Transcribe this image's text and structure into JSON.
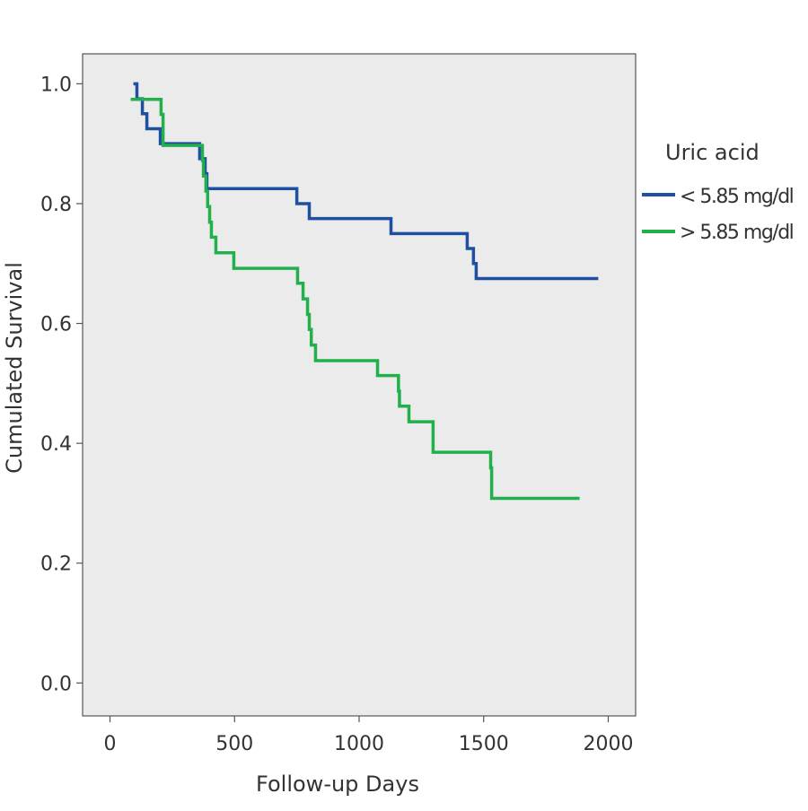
{
  "chart_data": {
    "type": "line",
    "step": true,
    "xlabel": "Follow-up Days",
    "ylabel": "Cumulated Survival",
    "xlim": [
      -110,
      2110
    ],
    "ylim": [
      -0.055,
      1.05
    ],
    "xticks": [
      "0",
      "500",
      "1000",
      "1500",
      "2000"
    ],
    "xtick_values": [
      0,
      500,
      1000,
      1500,
      2000
    ],
    "yticks": [
      "0.0",
      "0.2",
      "0.4",
      "0.6",
      "0.8",
      "1.0"
    ],
    "ytick_values": [
      0,
      0.2,
      0.4,
      0.6,
      0.8,
      1.0
    ],
    "grid": false,
    "background": "#ebebeb",
    "legend": {
      "title": "Uric acid",
      "placement": "right"
    },
    "series": [
      {
        "name": "< 5.85 mg/dl",
        "color": "#1f4fa0",
        "x": [
          94,
          108,
          130,
          148,
          202,
          360,
          382,
          389,
          750,
          800,
          1128,
          1434,
          1459,
          1470,
          1960
        ],
        "y": [
          1.0,
          0.975,
          0.95,
          0.925,
          0.9,
          0.875,
          0.85,
          0.825,
          0.8,
          0.775,
          0.75,
          0.725,
          0.7,
          0.675,
          0.675
        ]
      },
      {
        "name": "> 5.85 mg/dl",
        "color": "#21b04b",
        "x": [
          83,
          205,
          213,
          371,
          375,
          385,
          392,
          400,
          407,
          425,
          497,
          753,
          775,
          793,
          800,
          808,
          825,
          1074,
          1158,
          1162,
          1200,
          1297,
          1528,
          1532,
          1885
        ],
        "y": [
          0.974,
          0.949,
          0.897,
          0.872,
          0.846,
          0.821,
          0.795,
          0.769,
          0.744,
          0.718,
          0.692,
          0.667,
          0.641,
          0.615,
          0.59,
          0.564,
          0.538,
          0.513,
          0.487,
          0.462,
          0.436,
          0.385,
          0.359,
          0.308,
          0.308
        ]
      }
    ]
  }
}
